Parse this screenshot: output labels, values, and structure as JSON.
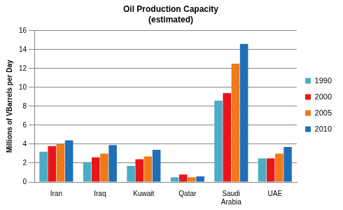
{
  "chart_data": {
    "type": "bar",
    "title": "Oil Production Capacity",
    "subtitle": "(estimated)",
    "y_label": "Millions of VBarrels per Day",
    "categories": [
      "Iran",
      "Iraq",
      "Kuwait",
      "Qatar",
      "Saudi Arabia",
      "UAE"
    ],
    "series": [
      {
        "name": "1990",
        "color": "#4bacc6",
        "values": [
          3.2,
          2.1,
          1.7,
          0.5,
          8.6,
          2.5
        ]
      },
      {
        "name": "2000",
        "color": "#e8161b",
        "values": [
          3.8,
          2.6,
          2.4,
          0.8,
          9.4,
          2.5
        ]
      },
      {
        "name": "2005",
        "color": "#f07a1a",
        "values": [
          4.0,
          3.0,
          2.7,
          0.5,
          12.5,
          3.0
        ]
      },
      {
        "name": "2010",
        "color": "#1f6fb8",
        "values": [
          4.4,
          3.9,
          3.4,
          0.6,
          14.6,
          3.7
        ]
      }
    ],
    "ylim": [
      0,
      16
    ],
    "yticks": [
      0,
      2,
      4,
      6,
      8,
      10,
      12,
      14,
      16
    ],
    "grid": true,
    "legend": "right"
  }
}
